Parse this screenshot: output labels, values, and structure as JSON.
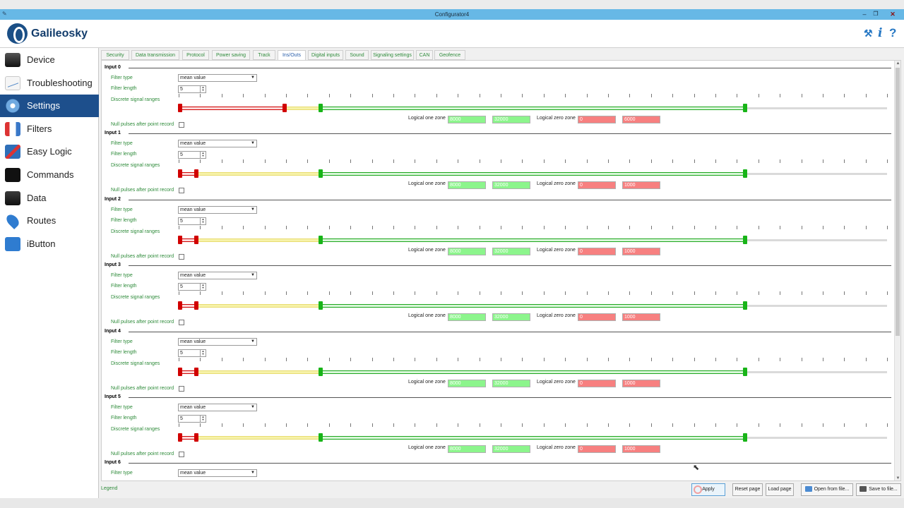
{
  "window": {
    "title": "Configurator4"
  },
  "brand": {
    "name": "Galileosky"
  },
  "sidebar": {
    "items": [
      {
        "label": "Device",
        "icon": "device-icon"
      },
      {
        "label": "Troubleshooting",
        "icon": "troubleshooting-icon"
      },
      {
        "label": "Settings",
        "icon": "settings-icon",
        "active": true
      },
      {
        "label": "Filters",
        "icon": "filters-icon"
      },
      {
        "label": "Easy Logic",
        "icon": "easy-logic-icon"
      },
      {
        "label": "Commands",
        "icon": "commands-icon"
      },
      {
        "label": "Data",
        "icon": "data-icon"
      },
      {
        "label": "Routes",
        "icon": "routes-icon"
      },
      {
        "label": "iButton",
        "icon": "ibutton-icon"
      }
    ]
  },
  "tabs": [
    {
      "label": "Security"
    },
    {
      "label": "Data transmission"
    },
    {
      "label": "Protocol"
    },
    {
      "label": "Power saving"
    },
    {
      "label": "Track"
    },
    {
      "label": "Ins/Outs",
      "active": true
    },
    {
      "label": "Digital inputs"
    },
    {
      "label": "Sound"
    },
    {
      "label": "Signaling settings"
    },
    {
      "label": "CAN"
    },
    {
      "label": "Geofence"
    }
  ],
  "labels": {
    "filter_type": "Filter type",
    "filter_length": "Filter length",
    "discrete_ranges": "Discrete signal ranges",
    "null_pulses": "Null pulses after point record",
    "logical_one": "Logical one zone",
    "logical_zero": "Logical zero zone"
  },
  "inputs": [
    {
      "title": "Input 0",
      "filter_type": "mean value",
      "filter_length": "5",
      "one_from": "8000",
      "one_to": "32000",
      "zero_from": "0",
      "zero_to": "6000"
    },
    {
      "title": "Input 1",
      "filter_type": "mean value",
      "filter_length": "5",
      "one_from": "8000",
      "one_to": "32000",
      "zero_from": "0",
      "zero_to": "1000"
    },
    {
      "title": "Input 2",
      "filter_type": "mean value",
      "filter_length": "5",
      "one_from": "8000",
      "one_to": "32000",
      "zero_from": "0",
      "zero_to": "1000"
    },
    {
      "title": "Input 3",
      "filter_type": "mean value",
      "filter_length": "5",
      "one_from": "8000",
      "one_to": "32000",
      "zero_from": "0",
      "zero_to": "1000"
    },
    {
      "title": "Input 4",
      "filter_type": "mean value",
      "filter_length": "5",
      "one_from": "8000",
      "one_to": "32000",
      "zero_from": "0",
      "zero_to": "1000"
    },
    {
      "title": "Input 5",
      "filter_type": "mean value",
      "filter_length": "5",
      "one_from": "8000",
      "one_to": "32000",
      "zero_from": "0",
      "zero_to": "1000"
    },
    {
      "title": "Input 6",
      "filter_type": "mean value"
    }
  ],
  "footer": {
    "legend": "Legend",
    "apply": "Apply",
    "reset_page": "Reset page",
    "load_page": "Load page",
    "open_from_file": "Open from file...",
    "save_to_file": "Save to file..."
  },
  "colors": {
    "accent": "#1d4f8c",
    "label_green": "#2e8b3a",
    "zone_one": "#8cf58c",
    "zone_zero": "#f78080"
  }
}
